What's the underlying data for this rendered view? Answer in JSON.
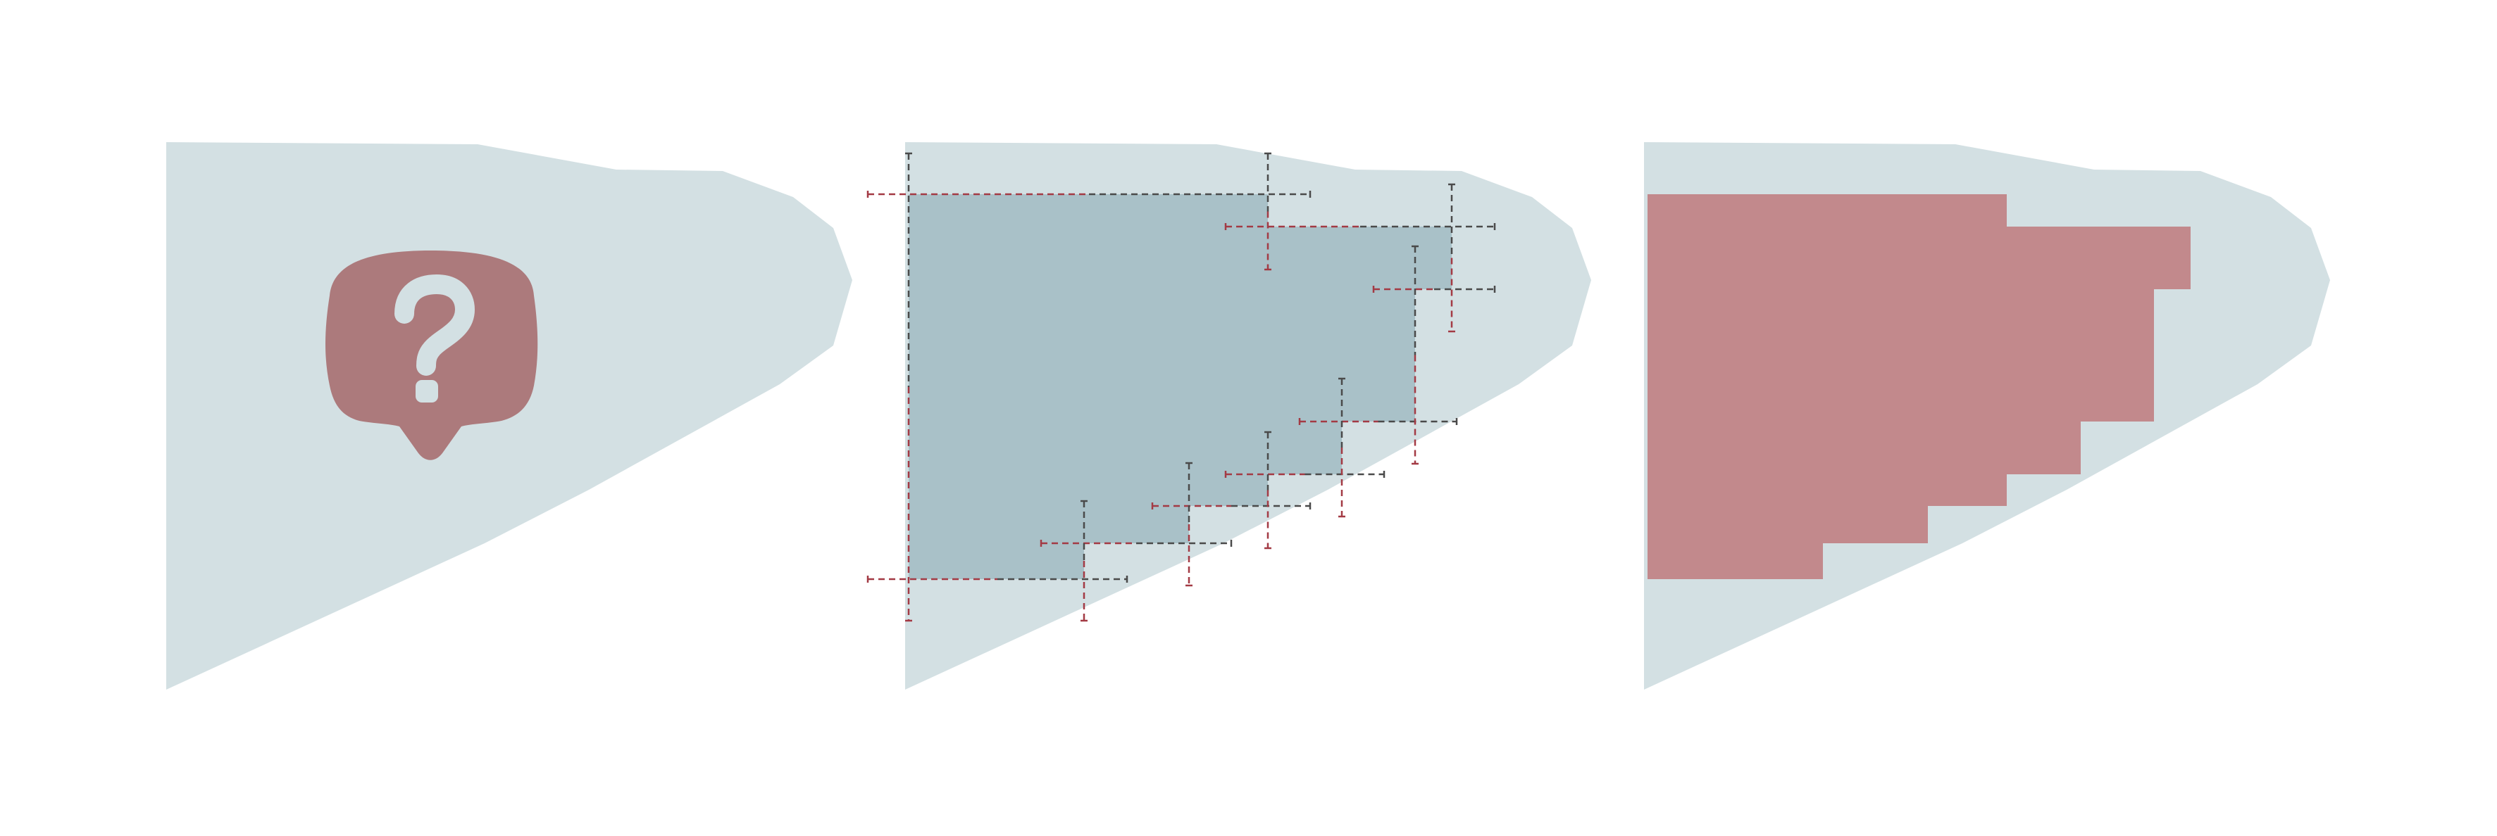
{
  "colors": {
    "background": "#ffffff",
    "shape_fill": "#d3e0e3",
    "question_bubble": "#ac7a7c",
    "question_glyph": "#d3e0e3",
    "inscribed_fill": "#a9c1c8",
    "guide_dark": "#4a4a4a",
    "guide_red": "#a33a44",
    "staircase_fill": "#c2898c"
  },
  "panels": [
    {
      "id": "panel-unknown",
      "icon": "question-bubble-icon"
    },
    {
      "id": "panel-construction",
      "icon": "dashed-guide-lines"
    },
    {
      "id": "panel-result",
      "icon": "staircase-polygon"
    }
  ]
}
